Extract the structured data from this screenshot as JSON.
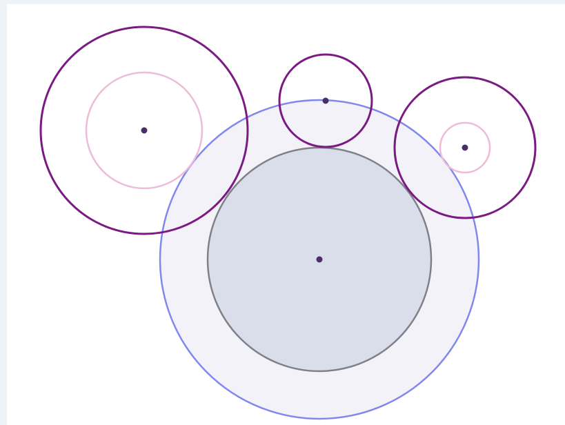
{
  "diagram": {
    "colors": {
      "background": "#ffffff",
      "frame": "#eef3f8",
      "outer_circle_stroke": "#8088ee",
      "outer_circle_fill": "#f2f2f8",
      "inner_circle_stroke": "#808088",
      "inner_circle_fill": "#dadeea",
      "small_circle_stroke": "#7a1a82",
      "pink_circle_stroke": "#eebbd8",
      "center_dot": "#4a2e66"
    },
    "shapes": [
      "outer-circle",
      "inner-circle",
      "left-circle",
      "left-inner-pink-circle",
      "top-circle",
      "right-circle",
      "right-inner-pink-circle"
    ]
  }
}
